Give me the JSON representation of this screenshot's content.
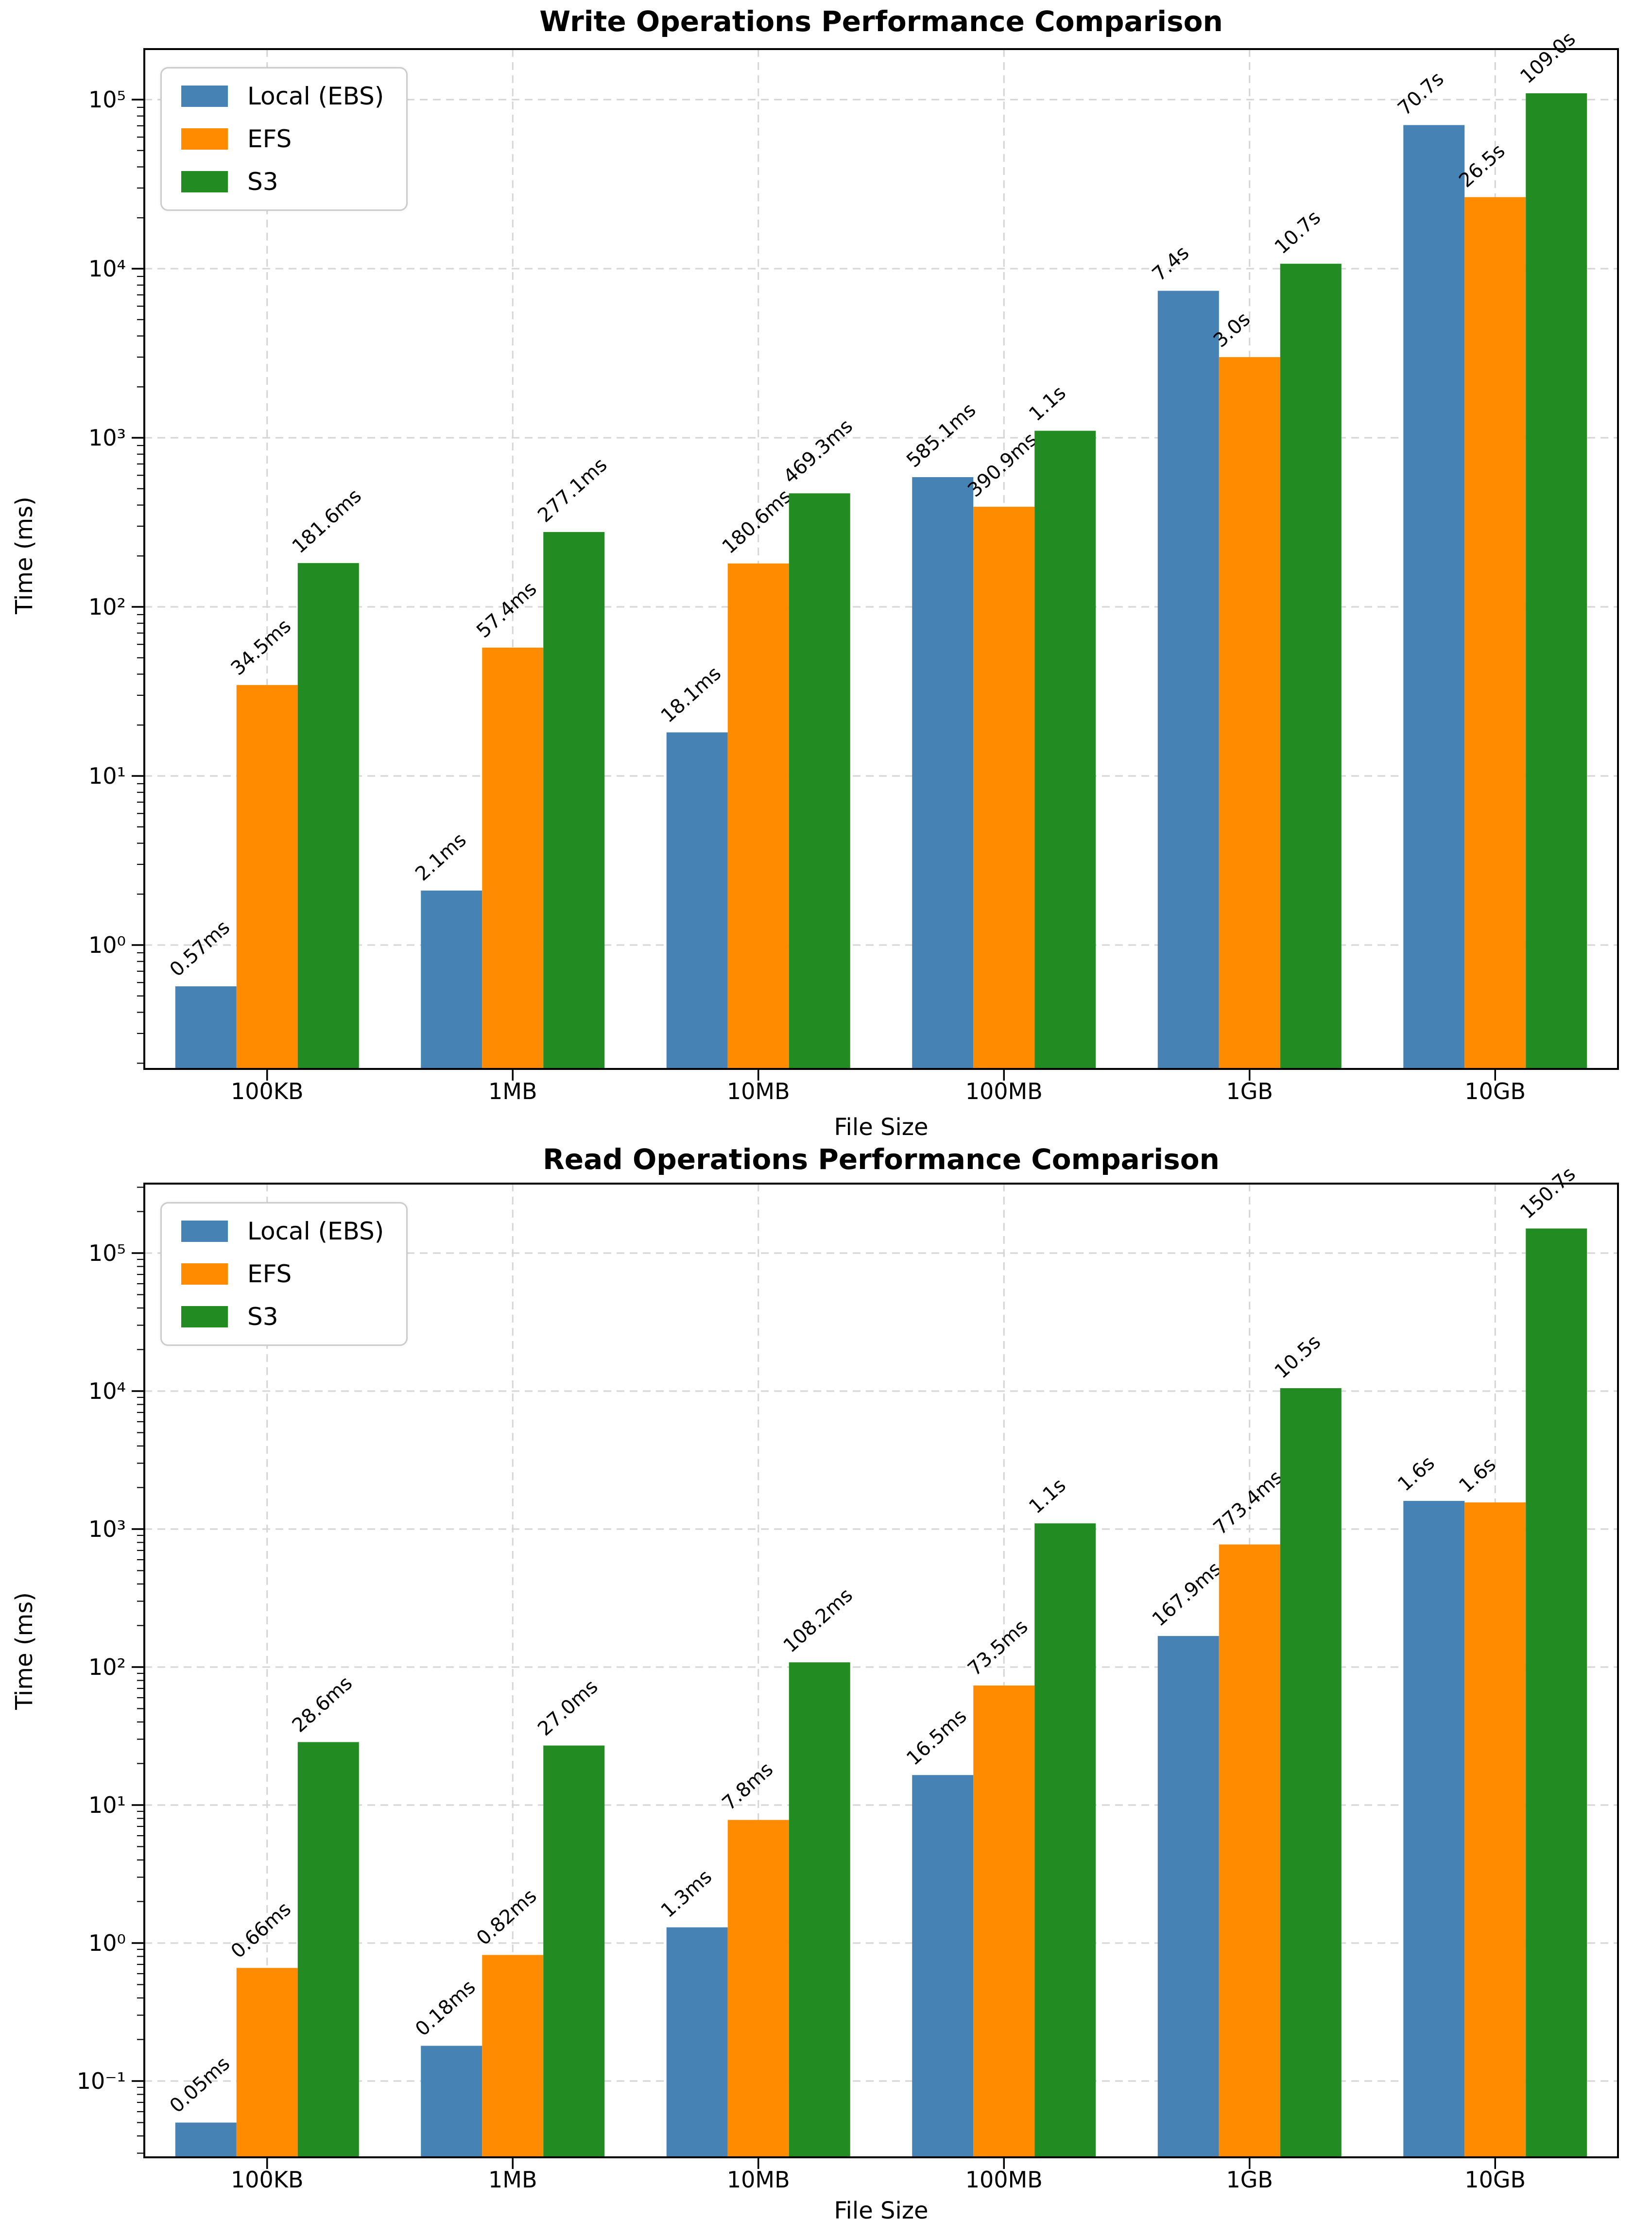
{
  "figure": {
    "background": "#FFFFFF",
    "grid_color": "#D5D5D5",
    "axis_color": "#000000",
    "text_color": "#000000"
  },
  "chart_data": [
    {
      "type": "bar",
      "title": "Write Operations Performance Comparison",
      "xlabel": "File Size",
      "ylabel": "Time (ms)",
      "yscale": "log",
      "grid": true,
      "legend_position": "upper left",
      "categories": [
        "100KB",
        "1MB",
        "10MB",
        "100MB",
        "1GB",
        "10GB"
      ],
      "ytick_labels": [
        "10⁰",
        "10¹",
        "10²",
        "10³",
        "10⁴",
        "10⁵"
      ],
      "ytick_exponents": [
        0,
        1,
        2,
        3,
        4,
        5
      ],
      "ylim_log": [
        -0.73,
        5.3
      ],
      "series": [
        {
          "name": "Local (EBS)",
          "color": "#4682B4",
          "values": [
            0.57,
            2.1,
            18.1,
            585.1,
            7400,
            70700
          ],
          "labels": [
            "0.57ms",
            "2.1ms",
            "18.1ms",
            "585.1ms",
            "7.4s",
            "70.7s"
          ]
        },
        {
          "name": "EFS",
          "color": "#FF8C00",
          "values": [
            34.5,
            57.4,
            180.6,
            390.9,
            3000,
            26500
          ],
          "labels": [
            "34.5ms",
            "57.4ms",
            "180.6ms",
            "390.9ms",
            "3.0s",
            "26.5s"
          ]
        },
        {
          "name": "S3",
          "color": "#228B22",
          "values": [
            181.6,
            277.1,
            469.3,
            1100,
            10700,
            109000
          ],
          "labels": [
            "181.6ms",
            "277.1ms",
            "469.3ms",
            "1.1s",
            "10.7s",
            "109.0s"
          ]
        }
      ]
    },
    {
      "type": "bar",
      "title": "Read Operations Performance Comparison",
      "xlabel": "File Size",
      "ylabel": "Time (ms)",
      "yscale": "log",
      "grid": true,
      "legend_position": "upper left",
      "categories": [
        "100KB",
        "1MB",
        "10MB",
        "100MB",
        "1GB",
        "10GB"
      ],
      "ytick_labels": [
        "10⁻¹",
        "10⁰",
        "10¹",
        "10²",
        "10³",
        "10⁴",
        "10⁵"
      ],
      "ytick_exponents": [
        -1,
        0,
        1,
        2,
        3,
        4,
        5
      ],
      "ylim_log": [
        -1.55,
        5.5
      ],
      "series": [
        {
          "name": "Local (EBS)",
          "color": "#4682B4",
          "values": [
            0.05,
            0.18,
            1.3,
            16.5,
            167.9,
            1600
          ],
          "labels": [
            "0.05ms",
            "0.18ms",
            "1.3ms",
            "16.5ms",
            "167.9ms",
            "1.6s"
          ]
        },
        {
          "name": "EFS",
          "color": "#FF8C00",
          "values": [
            0.66,
            0.82,
            7.8,
            73.5,
            773.4,
            1560
          ],
          "labels": [
            "0.66ms",
            "0.82ms",
            "7.8ms",
            "73.5ms",
            "773.4ms",
            "1.6s"
          ]
        },
        {
          "name": "S3",
          "color": "#228B22",
          "values": [
            28.6,
            27.0,
            108.2,
            1100,
            10500,
            150700
          ],
          "labels": [
            "28.6ms",
            "27.0ms",
            "108.2ms",
            "1.1s",
            "10.5s",
            "150.7s"
          ]
        }
      ]
    }
  ]
}
